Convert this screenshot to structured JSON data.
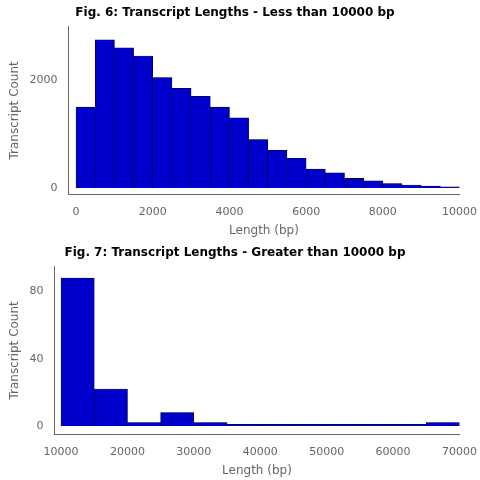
{
  "chart_data": [
    {
      "type": "histogram",
      "title": "Fig. 6: Transcript Lengths - Less than 10000 bp",
      "x_label": "Length (bp)",
      "y_label": "Transcript Count",
      "bins": [
        0,
        500,
        1000,
        1500,
        2000,
        2500,
        3000,
        3500,
        4000,
        4500,
        5000,
        5500,
        6000,
        6500,
        7000,
        7500,
        8000,
        8500,
        9000,
        9500,
        10000
      ],
      "values": [
        1500,
        2750,
        2600,
        2450,
        2050,
        1850,
        1700,
        1500,
        1300,
        900,
        700,
        550,
        350,
        280,
        180,
        130,
        80,
        55,
        35,
        20
      ],
      "color": "#0000CC",
      "xlim": [
        -200,
        10000
      ],
      "ylim": [
        -120,
        3000
      ],
      "xticks": [
        0,
        2000,
        4000,
        6000,
        8000,
        10000
      ],
      "yticks": [
        0,
        2000
      ],
      "grid": false
    },
    {
      "type": "histogram",
      "title": "Fig. 7: Transcript Lengths - Greater than 10000 bp",
      "x_label": "Length (bp)",
      "y_label": "Transcript Count",
      "bins": [
        10000,
        15000,
        20000,
        25000,
        30000,
        35000,
        40000,
        45000,
        50000,
        55000,
        60000,
        65000,
        70000
      ],
      "values": [
        88,
        22,
        2,
        8,
        2,
        1,
        1,
        1,
        1,
        1,
        1,
        2
      ],
      "color": "#0000CC",
      "xlim": [
        9000,
        70000
      ],
      "ylim": [
        -5,
        95
      ],
      "xticks": [
        10000,
        20000,
        30000,
        40000,
        50000,
        60000,
        70000
      ],
      "yticks": [
        0,
        40,
        80
      ],
      "grid": false
    }
  ]
}
